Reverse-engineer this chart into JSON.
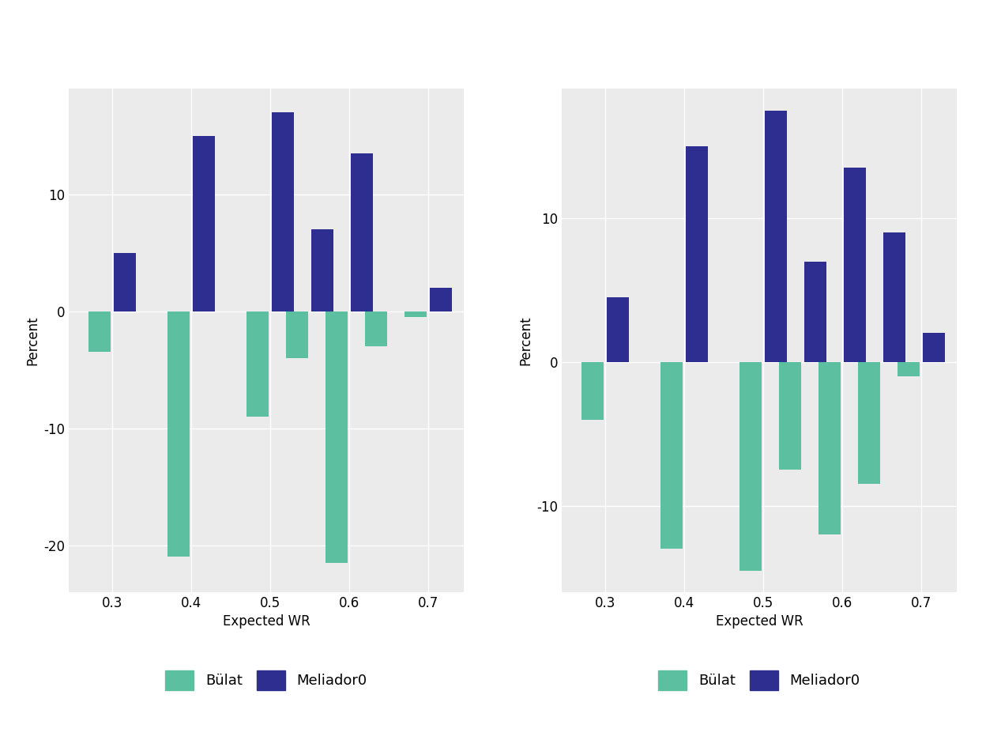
{
  "chart1": {
    "groups": [
      0.3,
      0.4,
      0.5,
      0.55,
      0.6,
      0.65,
      0.7
    ],
    "bulat": [
      -3.5,
      -21.0,
      -9.0,
      -4.0,
      -21.5,
      -3.0,
      -0.5
    ],
    "meliador": [
      5.0,
      15.0,
      17.0,
      7.0,
      13.5,
      0.0,
      2.0
    ],
    "ylim": [
      -24,
      19
    ]
  },
  "chart2": {
    "groups": [
      0.3,
      0.4,
      0.5,
      0.55,
      0.6,
      0.65,
      0.7
    ],
    "bulat": [
      -4.0,
      -13.0,
      -14.5,
      -7.5,
      -12.0,
      -8.5,
      -1.0
    ],
    "meliador": [
      4.5,
      15.0,
      17.5,
      7.0,
      13.5,
      9.0,
      2.0
    ],
    "ylim": [
      -16,
      19
    ]
  },
  "bulat_color": "#5bbfa0",
  "meliador_color": "#2d2e8f",
  "plot_bg": "#ebebeb",
  "fig_bg": "#ffffff",
  "xlabel": "Expected WR",
  "ylabel": "Percent",
  "xticks": [
    0.3,
    0.4,
    0.5,
    0.6,
    0.7
  ],
  "bar_width": 0.028,
  "legend_labels": [
    "Bülat",
    "Meliador0"
  ],
  "yticks1": [
    -20,
    -10,
    0,
    10
  ],
  "yticks2": [
    -10,
    0,
    10
  ]
}
